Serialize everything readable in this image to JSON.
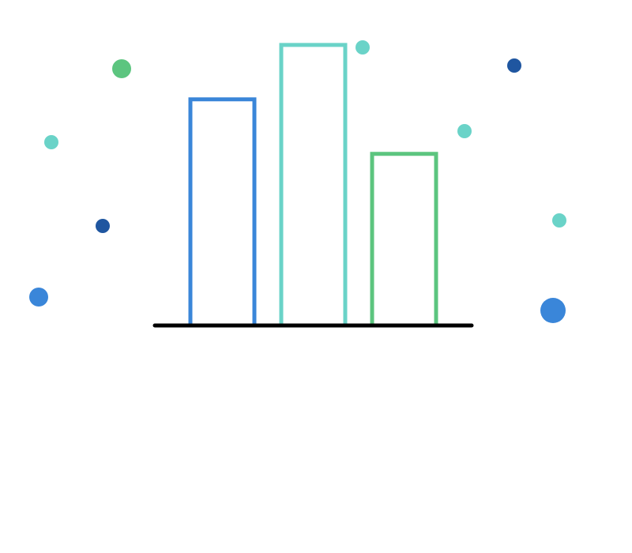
{
  "chart_data": {
    "type": "bar",
    "title": "",
    "xlabel": "",
    "ylabel": "",
    "categories": [
      "",
      "",
      ""
    ],
    "values": [
      54,
      67,
      41
    ],
    "ylim": [
      0,
      80
    ],
    "grid": false,
    "legend": "none",
    "bar_style": "outline",
    "bar_colors": [
      "#3a86d9",
      "#6ad3c8",
      "#5cc57f"
    ],
    "axis_color": "#000000"
  },
  "decoration": {
    "dots": [
      {
        "color": "#5cc57f",
        "emphasis": "medium"
      },
      {
        "color": "#6ad3c8",
        "emphasis": "small"
      },
      {
        "color": "#1f56a0",
        "emphasis": "small"
      },
      {
        "color": "#3a86d9",
        "emphasis": "medium"
      },
      {
        "color": "#6ad3c8",
        "emphasis": "small"
      },
      {
        "color": "#1f56a0",
        "emphasis": "small"
      },
      {
        "color": "#6ad3c8",
        "emphasis": "small"
      },
      {
        "color": "#6ad3c8",
        "emphasis": "small"
      },
      {
        "color": "#3a86d9",
        "emphasis": "large"
      }
    ]
  }
}
